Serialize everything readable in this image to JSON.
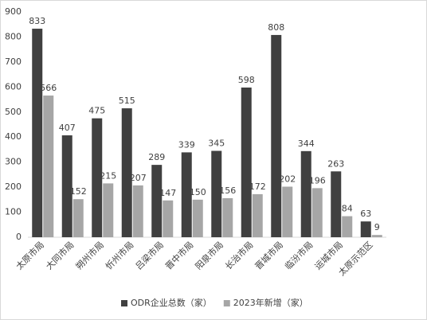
{
  "chart_data": {
    "type": "bar",
    "categories": [
      "太原市局",
      "大同市局",
      "朔州市局",
      "忻州市局",
      "吕梁市局",
      "晋中市局",
      "阳泉市局",
      "长治市局",
      "晋城市局",
      "临汾市局",
      "运城市局",
      "太原示范区"
    ],
    "series": [
      {
        "name": "ODR企业总数（家）",
        "color": "#404040",
        "values": [
          833,
          407,
          475,
          515,
          289,
          339,
          345,
          598,
          808,
          344,
          263,
          63
        ]
      },
      {
        "name": "2023年新增（家）",
        "color": "#a6a6a6",
        "values": [
          566,
          152,
          215,
          207,
          147,
          150,
          156,
          172,
          202,
          196,
          84,
          9
        ]
      }
    ],
    "ylim": [
      0,
      900
    ],
    "yticks": [
      0,
      100,
      200,
      300,
      400,
      500,
      600,
      700,
      800,
      900
    ],
    "grid": false,
    "legend": "bottom"
  }
}
